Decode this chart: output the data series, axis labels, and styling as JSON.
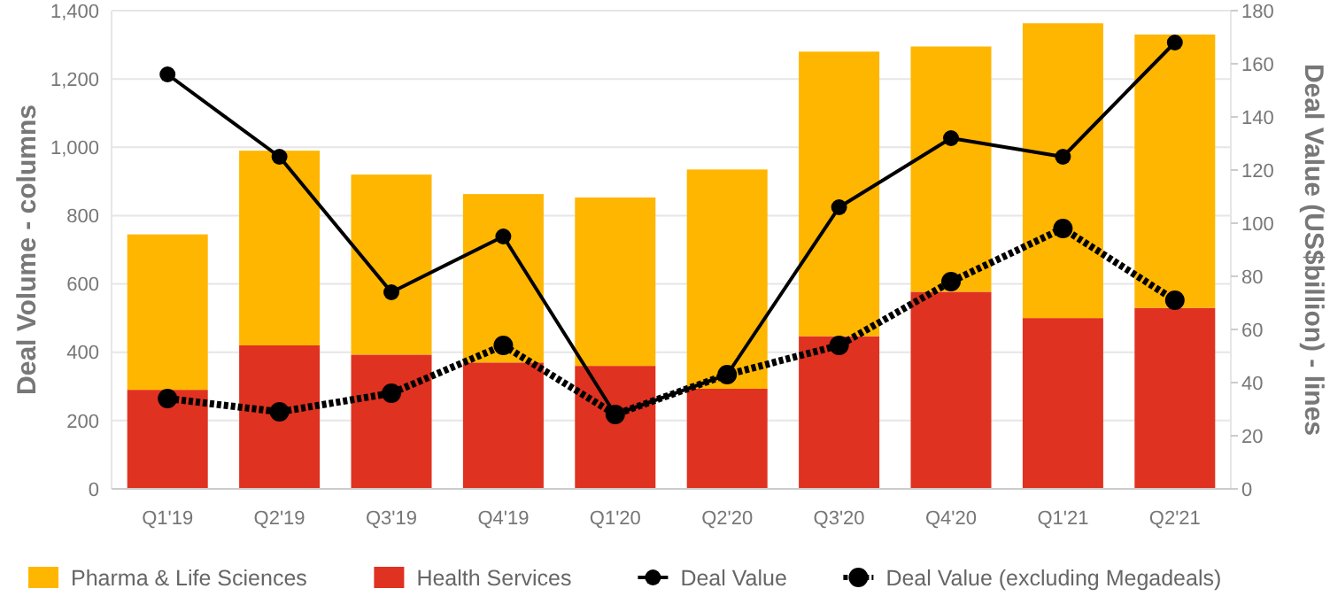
{
  "chart_data": {
    "type": "bar",
    "stacked": true,
    "categories": [
      "Q1'19",
      "Q2'19",
      "Q3'19",
      "Q4'19",
      "Q1'20",
      "Q2'20",
      "Q3'20",
      "Q4'20",
      "Q1'21",
      "Q2'21"
    ],
    "ylabel": "Deal Volume - columns",
    "y2label": "Deal Value (US$billion) - lines",
    "ylim": [
      0,
      1400
    ],
    "yticks": [
      {
        "value": 0,
        "label": "0"
      },
      {
        "value": 200,
        "label": "200"
      },
      {
        "value": 400,
        "label": "400"
      },
      {
        "value": 600,
        "label": "600"
      },
      {
        "value": 800,
        "label": "800"
      },
      {
        "value": 1000,
        "label": "1,000"
      },
      {
        "value": 1200,
        "label": "1,200"
      },
      {
        "value": 1400,
        "label": "1,400"
      }
    ],
    "y2lim": [
      0,
      180
    ],
    "y2ticks": [
      0,
      20,
      40,
      60,
      80,
      100,
      120,
      140,
      160,
      180
    ],
    "grid": "y",
    "legend": "bottom",
    "series": [
      {
        "name": "Health Services",
        "color": "#e03220",
        "values": [
          290,
          420,
          393,
          370,
          360,
          293,
          447,
          577,
          500,
          530
        ]
      },
      {
        "name": "Pharma & Life Sciences",
        "color": "#ffb600",
        "values": [
          455,
          570,
          527,
          493,
          493,
          642,
          833,
          718,
          863,
          800
        ]
      },
      {
        "name": "Deal Value",
        "type": "line",
        "axis": "y2",
        "color": "#000000",
        "marker": "circle",
        "line_style": "solid",
        "values": [
          156,
          125,
          74,
          95,
          28,
          43,
          106,
          132,
          125,
          168
        ]
      },
      {
        "name": "Deal Value (excluding Megadeals)",
        "type": "line",
        "axis": "y2",
        "color": "#000000",
        "marker": "circle",
        "line_style": "dotted",
        "values": [
          34,
          29,
          36,
          54,
          28,
          43,
          54,
          78,
          98,
          71
        ]
      }
    ]
  }
}
